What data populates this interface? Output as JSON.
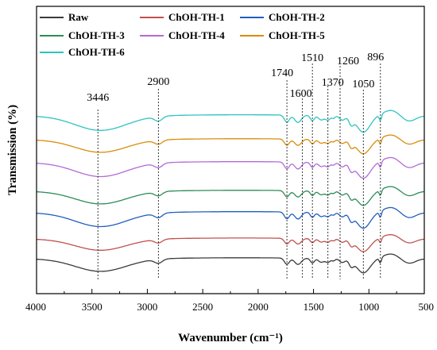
{
  "chart_data": {
    "type": "line",
    "xlabel": "Wavenumber (cm⁻¹)",
    "ylabel": "Transmission (%)",
    "xlim": [
      4000,
      500
    ],
    "x_reversed": true,
    "x_ticks": [
      "4000",
      "3500",
      "3000",
      "2500",
      "2000",
      "1500",
      "1000",
      "500"
    ],
    "y_ticks_shown": false,
    "grid": false,
    "legend_position": "top-left",
    "series": [
      {
        "name": "Raw",
        "color": "#3a3a3a"
      },
      {
        "name": "ChOH-TH-1",
        "color": "#c0504d"
      },
      {
        "name": "ChOH-TH-2",
        "color": "#1f5fbf"
      },
      {
        "name": "ChOH-TH-3",
        "color": "#2e8b57"
      },
      {
        "name": "ChOH-TH-4",
        "color": "#b36ad4"
      },
      {
        "name": "ChOH-TH-5",
        "color": "#d98c0b"
      },
      {
        "name": "ChOH-TH-6",
        "color": "#2ec4c0"
      }
    ],
    "annotations": [
      {
        "label": "3446",
        "x": 3446
      },
      {
        "label": "2900",
        "x": 2900
      },
      {
        "label": "1740",
        "x": 1740
      },
      {
        "label": "1600",
        "x": 1600
      },
      {
        "label": "1510",
        "x": 1510
      },
      {
        "label": "1370",
        "x": 1370
      },
      {
        "label": "1260",
        "x": 1260
      },
      {
        "label": "1050",
        "x": 1050
      },
      {
        "label": "896",
        "x": 896
      }
    ]
  }
}
